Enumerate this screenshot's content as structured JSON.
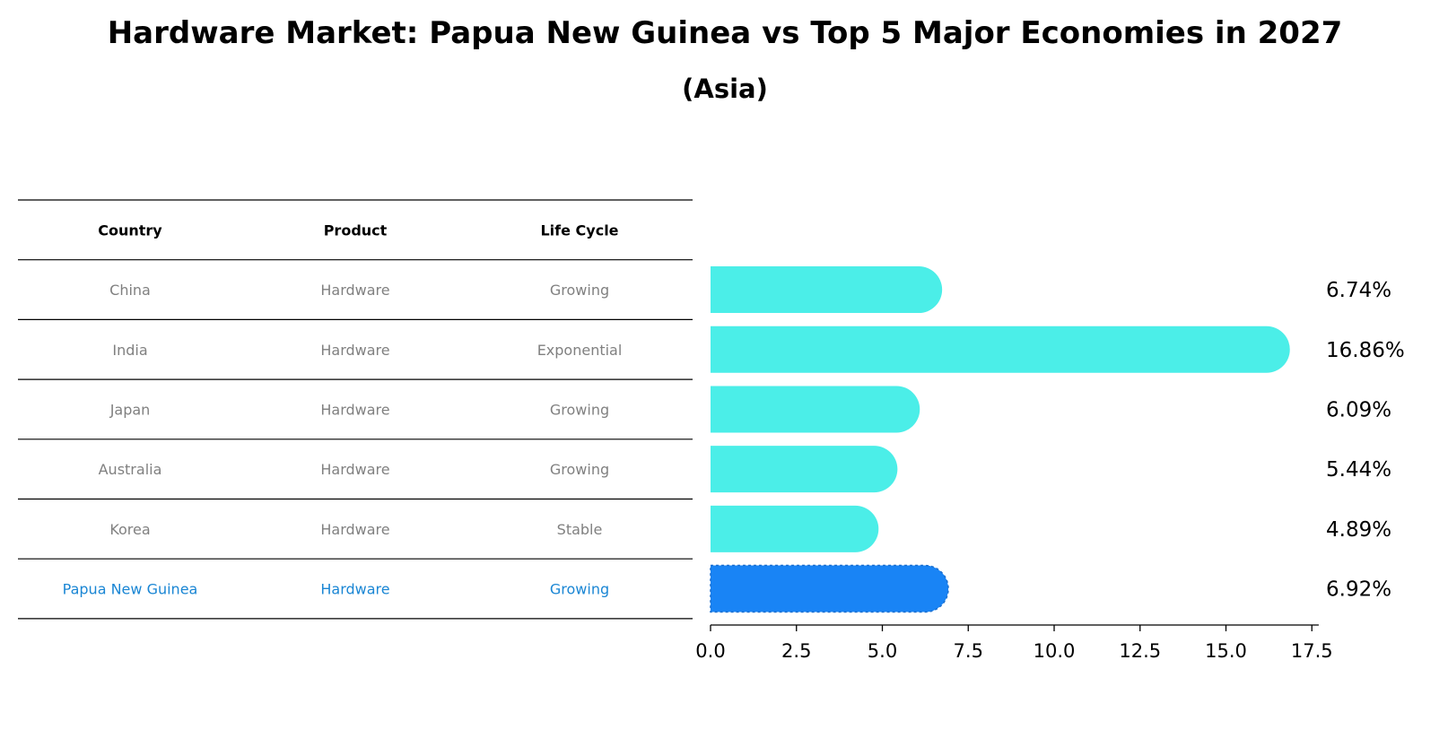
{
  "title": "Hardware Market: Papua New Guinea vs Top 5 Major Economies in 2027",
  "subtitle": "(Asia)",
  "table": {
    "headers": [
      "Country",
      "Product",
      "Life Cycle"
    ],
    "rows": [
      {
        "country": "China",
        "product": "Hardware",
        "life_cycle": "Growing"
      },
      {
        "country": "India",
        "product": "Hardware",
        "life_cycle": "Exponential"
      },
      {
        "country": "Japan",
        "product": "Hardware",
        "life_cycle": "Growing"
      },
      {
        "country": "Australia",
        "product": "Hardware",
        "life_cycle": "Growing"
      },
      {
        "country": "Korea",
        "product": "Hardware",
        "life_cycle": "Stable"
      },
      {
        "country": "Papua New Guinea",
        "product": "Hardware",
        "life_cycle": "Growing",
        "highlight": true
      }
    ]
  },
  "colors": {
    "bar": "#4beee8",
    "highlight_bar": "#1984f5",
    "highlight_text": "#1a86d4",
    "muted_text": "#808080"
  },
  "chart_data": {
    "type": "bar",
    "orientation": "horizontal",
    "categories": [
      "China",
      "India",
      "Japan",
      "Australia",
      "Korea",
      "Papua New Guinea"
    ],
    "values": [
      6.74,
      16.86,
      6.09,
      5.44,
      4.89,
      6.92
    ],
    "value_labels": [
      "6.74%",
      "16.86%",
      "6.09%",
      "5.44%",
      "4.89%",
      "6.92%"
    ],
    "highlight_index": 5,
    "xlim": [
      0,
      17.7
    ],
    "xticks": [
      0.0,
      2.5,
      5.0,
      7.5,
      10.0,
      12.5,
      15.0,
      17.5
    ],
    "xtick_labels": [
      "0.0",
      "2.5",
      "5.0",
      "7.5",
      "10.0",
      "12.5",
      "15.0",
      "17.5"
    ],
    "xlabel": "",
    "ylabel": ""
  }
}
